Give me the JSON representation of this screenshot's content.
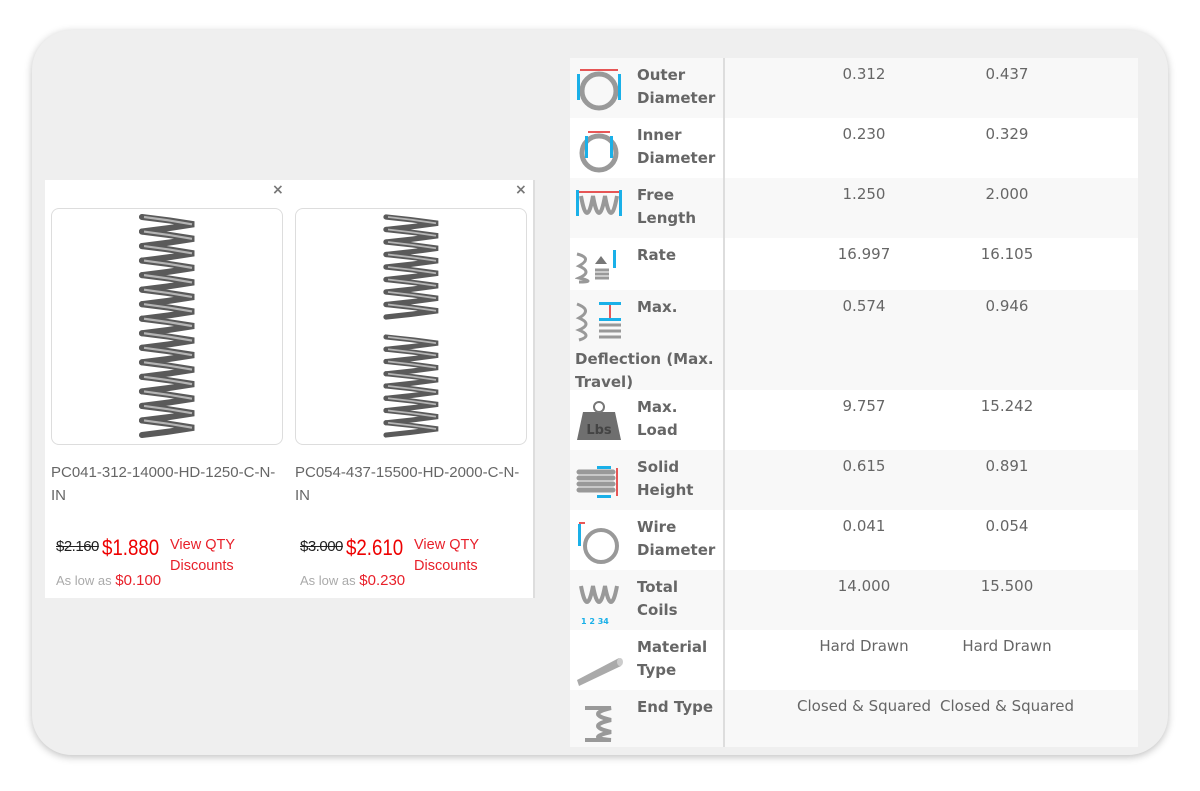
{
  "products": [
    {
      "sku": "PC041-312-14000-HD-1250-C-N-IN",
      "old_price": "$2.160",
      "price": "$1.880",
      "qty_link": "View QTY Discounts",
      "as_low_label": "As low as",
      "as_low_price": "$0.100",
      "close": "×"
    },
    {
      "sku": "PC054-437-15500-HD-2000-C-N-IN",
      "old_price": "$3.000",
      "price": "$2.610",
      "qty_link": "View QTY Discounts",
      "as_low_label": "As low as",
      "as_low_price": "$0.230",
      "close": "×"
    }
  ],
  "specs": [
    {
      "label": "Outer Diameter",
      "icon": "outer-diameter-icon",
      "values": [
        "0.312",
        "0.437"
      ]
    },
    {
      "label": "Inner Diameter",
      "icon": "inner-diameter-icon",
      "values": [
        "0.230",
        "0.329"
      ]
    },
    {
      "label": "Free Length",
      "icon": "free-length-icon",
      "values": [
        "1.250",
        "2.000"
      ]
    },
    {
      "label": "Rate",
      "icon": "rate-icon",
      "values": [
        "16.997",
        "16.105"
      ]
    },
    {
      "label": "Max. Deflection (Max. Travel)",
      "icon": "max-deflection-icon",
      "values": [
        "0.574",
        "0.946"
      ]
    },
    {
      "label": "Max. Load",
      "icon": "weight-icon",
      "icon_text": "Lbs",
      "values": [
        "9.757",
        "15.242"
      ]
    },
    {
      "label": "Solid Height",
      "icon": "solid-height-icon",
      "values": [
        "0.615",
        "0.891"
      ]
    },
    {
      "label": "Wire Diameter",
      "icon": "wire-diameter-icon",
      "values": [
        "0.041",
        "0.054"
      ]
    },
    {
      "label": "Total Coils",
      "icon": "total-coils-icon",
      "values": [
        "14.000",
        "15.500"
      ]
    },
    {
      "label": "Material Type",
      "icon": "wire-rod-icon",
      "values": [
        "Hard Drawn",
        "Hard Drawn"
      ]
    },
    {
      "label": "End Type",
      "icon": "end-type-icon",
      "values": [
        "Closed & Squared",
        "Closed & Squared"
      ]
    }
  ],
  "colors": {
    "accent": "#e8202a",
    "measure_blue": "#1ab0e8",
    "measure_red": "#e02020"
  }
}
